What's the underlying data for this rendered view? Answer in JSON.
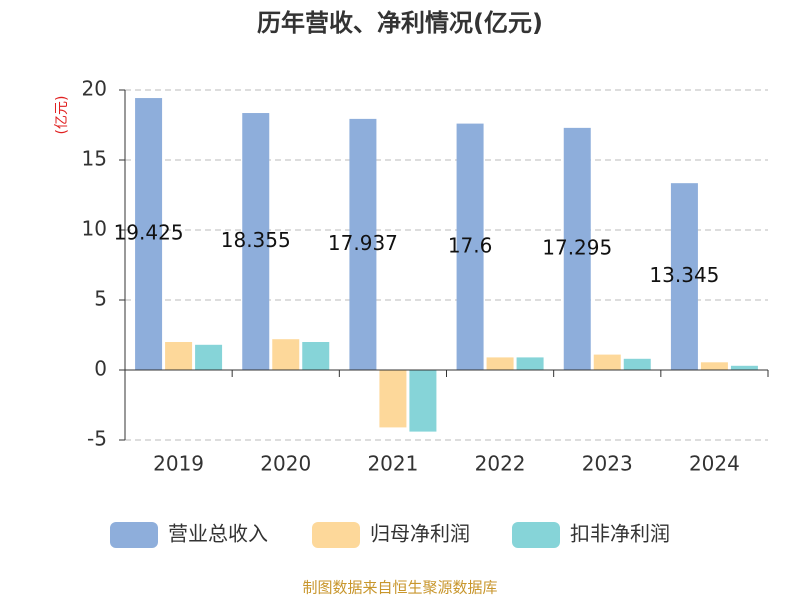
{
  "chart_data": {
    "type": "bar",
    "title": "历年营收、净利情况(亿元)",
    "y_label": "(亿元)",
    "categories": [
      "2019",
      "2020",
      "2021",
      "2022",
      "2023",
      "2024"
    ],
    "series": [
      {
        "name": "营业总收入",
        "color": "#8eaedb",
        "values": [
          19.425,
          18.355,
          17.937,
          17.6,
          17.295,
          13.345
        ],
        "show_labels": true
      },
      {
        "name": "归母净利润",
        "color": "#fdd89a",
        "values": [
          2.0,
          2.2,
          -4.1,
          0.9,
          1.1,
          0.55
        ]
      },
      {
        "name": "扣非净利润",
        "color": "#86d4d8",
        "values": [
          1.8,
          2.0,
          -4.4,
          0.9,
          0.8,
          0.3
        ]
      }
    ],
    "ylim": [
      -5,
      20
    ],
    "yticks": [
      -5,
      0,
      5,
      10,
      15,
      20
    ],
    "grid": true,
    "source": "制图数据来自恒生聚源数据库"
  }
}
